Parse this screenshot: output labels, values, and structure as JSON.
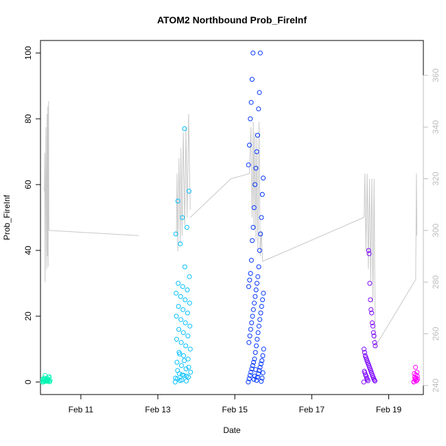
{
  "chart_data": {
    "type": "scatter",
    "title": "ATOM2 Northbound Prob_FireInf",
    "xlabel": "Date",
    "ylabel": "Prob_FireInf",
    "x_ticks": [
      "Feb 11",
      "Feb 13",
      "Feb 15",
      "Feb 17",
      "Feb 19"
    ],
    "x_tick_days": [
      11,
      13,
      15,
      17,
      19
    ],
    "xlim": [
      9.95,
      19.9
    ],
    "ylim": [
      -3.8,
      103.8
    ],
    "y_ticks": [
      0,
      20,
      40,
      60,
      80,
      100
    ],
    "y2lim": [
      236.5,
      373.5
    ],
    "y2_ticks": [
      240,
      260,
      280,
      300,
      320,
      340,
      360
    ],
    "y2_color": "#bdbdbd",
    "grid": false,
    "line_color": "#c8c8c8",
    "line_segments": [
      [
        [
          10.05,
          315
        ],
        [
          10.06,
          330
        ],
        [
          10.07,
          280
        ],
        [
          10.09,
          340
        ],
        [
          10.11,
          285
        ],
        [
          10.12,
          345
        ],
        [
          10.13,
          290
        ],
        [
          10.14,
          348
        ],
        [
          10.15,
          286
        ],
        [
          10.16,
          350
        ],
        [
          10.17,
          300
        ]
      ],
      [
        [
          10.17,
          300
        ],
        [
          12.5,
          298
        ]
      ],
      [
        [
          13.48,
          298
        ],
        [
          13.5,
          322
        ],
        [
          13.52,
          292
        ],
        [
          13.55,
          328
        ],
        [
          13.58,
          295
        ],
        [
          13.6,
          332
        ],
        [
          13.63,
          298
        ],
        [
          13.66,
          338
        ],
        [
          13.7,
          302
        ],
        [
          13.73,
          340
        ],
        [
          13.76,
          305
        ],
        [
          13.8,
          345
        ],
        [
          13.84,
          308
        ]
      ],
      [
        [
          13.84,
          305
        ],
        [
          14.9,
          320
        ],
        [
          15.38,
          322
        ]
      ],
      [
        [
          15.38,
          322
        ],
        [
          15.42,
          340
        ],
        [
          15.45,
          305
        ],
        [
          15.48,
          342
        ],
        [
          15.5,
          300
        ],
        [
          15.52,
          338
        ],
        [
          15.55,
          296
        ],
        [
          15.57,
          336
        ],
        [
          15.6,
          293
        ],
        [
          15.63,
          342
        ],
        [
          15.66,
          290
        ],
        [
          15.69,
          300
        ],
        [
          15.72,
          288
        ]
      ],
      [
        [
          15.72,
          288
        ],
        [
          18.35,
          305
        ]
      ],
      [
        [
          18.36,
          305
        ],
        [
          18.38,
          322
        ],
        [
          18.41,
          292
        ],
        [
          18.44,
          322
        ],
        [
          18.47,
          285
        ],
        [
          18.5,
          320
        ],
        [
          18.53,
          280
        ],
        [
          18.56,
          320
        ],
        [
          18.59,
          272
        ],
        [
          18.62,
          320
        ],
        [
          18.65,
          255
        ]
      ],
      [
        [
          18.65,
          255
        ],
        [
          19.7,
          281
        ]
      ],
      [
        [
          19.7,
          281
        ],
        [
          19.72,
          322
        ],
        [
          19.73,
          298
        ]
      ]
    ],
    "clusters": [
      {
        "color": "#00f5b4",
        "x_range": [
          10.0,
          10.2
        ],
        "values": [
          0,
          0.2,
          0.4,
          0.6,
          0.8,
          1.0,
          1.2,
          1.5,
          2.0,
          0.1,
          0.3,
          0.5,
          0.7,
          0.9,
          1.1,
          0.0,
          0.2,
          0.4,
          0.6,
          0.8,
          1.6,
          0.3,
          0.1,
          0.5
        ]
      },
      {
        "color": "#00bfff",
        "x_range": [
          13.45,
          13.85
        ],
        "values": [
          0,
          0.3,
          0.6,
          1.0,
          1.5,
          2,
          2.5,
          3,
          4,
          5,
          6,
          7,
          8,
          9,
          10,
          11,
          12,
          13,
          14,
          15,
          16,
          17,
          18,
          19,
          20,
          21,
          22,
          23,
          24,
          25,
          26,
          27,
          28,
          29,
          30,
          32,
          35,
          42,
          45,
          47,
          50,
          55,
          58,
          77,
          0.5,
          1.2,
          1.8,
          2.2,
          3.5,
          4.5,
          6.5,
          8.5
        ]
      },
      {
        "color": "#0033ff",
        "x_range": [
          15.35,
          15.75
        ],
        "values": [
          0,
          0.5,
          1,
          1.5,
          2,
          2.5,
          3,
          3.5,
          4,
          4.5,
          5,
          5.5,
          6,
          6.5,
          7,
          8,
          9,
          10,
          11,
          12,
          13,
          14,
          15,
          16,
          17,
          18,
          19,
          20,
          21,
          22,
          23,
          24,
          25,
          26,
          27,
          28,
          29,
          30,
          31,
          32,
          33,
          35,
          37,
          40,
          43,
          45,
          47,
          50,
          53,
          57,
          60,
          62,
          65,
          66,
          70,
          72,
          75,
          80,
          83,
          85,
          88,
          92,
          100,
          100,
          0.2,
          0.8,
          1.2,
          1.8,
          2.8,
          3.8
        ]
      },
      {
        "color": "#7a00ff",
        "x_range": [
          18.35,
          18.65
        ],
        "values": [
          0,
          0.3,
          0.6,
          1,
          1.5,
          2,
          2.5,
          3,
          3.5,
          4,
          4.5,
          5,
          5.5,
          6,
          6.5,
          7,
          7.5,
          8,
          9,
          10,
          11,
          12,
          14,
          15,
          17,
          18,
          21,
          22,
          25,
          30,
          39,
          40,
          0.4,
          0.8,
          1.2,
          1.8,
          2.2,
          2.8,
          3.3
        ]
      },
      {
        "color": "#ff00ff",
        "x_range": [
          19.65,
          19.75
        ],
        "values": [
          0,
          0.3,
          0.6,
          0.9,
          1.2,
          1.5,
          1.8,
          2.2,
          2.6,
          3.0,
          4.5,
          0.1,
          0.5,
          1.0
        ]
      }
    ]
  }
}
